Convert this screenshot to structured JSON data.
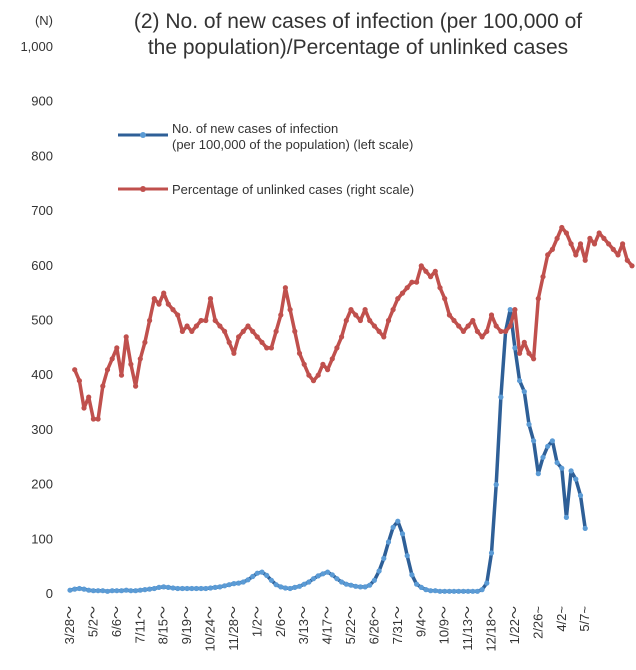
{
  "chart_data": {
    "type": "line",
    "title_lines": [
      "(2) No. of new cases of infection (per 100,000 of",
      "the population)/Percentage of unlinked cases"
    ],
    "y_unit": "(N)",
    "ylim": [
      0,
      1000
    ],
    "y_ticks": [
      "0",
      "100",
      "200",
      "300",
      "400",
      "500",
      "600",
      "700",
      "800",
      "900",
      "1,000"
    ],
    "x_tick_labels": [
      "3/28～",
      "5/2～",
      "6/6～",
      "7/11～",
      "8/15～",
      "9/19～",
      "10/24～",
      "11/28～",
      "1/2～",
      "2/6～",
      "3/13～",
      "4/17～",
      "5/22～",
      "6/26～",
      "7/31～",
      "9/4～",
      "10/9～",
      "11/13～",
      "12/18～",
      "1/22～",
      "2/26~",
      "4/2~",
      "5/7~"
    ],
    "x_tick_positions": [
      0,
      5,
      10,
      15,
      20,
      25,
      30,
      35,
      40,
      45,
      50,
      55,
      60,
      65,
      70,
      75,
      80,
      85,
      90,
      95,
      100,
      105,
      110
    ],
    "grid": false,
    "legend_position": "top-left",
    "series": [
      {
        "name_lines": [
          "No. of new cases of infection",
          "(per 100,000 of the population) (left scale)"
        ],
        "color": "#2e5f97",
        "marker_color": "#5b9bd5",
        "start": 0,
        "values": [
          7,
          9,
          10,
          9,
          7,
          6,
          6,
          6,
          5,
          6,
          6,
          6,
          7,
          6,
          6,
          7,
          8,
          9,
          10,
          12,
          13,
          12,
          11,
          10,
          10,
          10,
          10,
          10,
          10,
          10,
          11,
          12,
          13,
          15,
          17,
          19,
          20,
          22,
          26,
          32,
          38,
          40,
          34,
          25,
          17,
          13,
          11,
          10,
          12,
          14,
          18,
          22,
          28,
          33,
          37,
          40,
          35,
          28,
          22,
          18,
          16,
          14,
          13,
          13,
          16,
          25,
          42,
          65,
          95,
          122,
          133,
          110,
          70,
          35,
          18,
          12,
          8,
          6,
          6,
          5,
          5,
          5,
          5,
          5,
          5,
          5,
          5,
          5,
          8,
          20,
          75,
          200,
          360,
          480,
          520,
          450,
          390,
          370,
          310,
          280,
          220,
          250,
          270,
          280,
          240,
          230,
          140,
          225,
          210,
          180,
          120
        ]
      },
      {
        "name": "Percentage of unlinked cases (right scale)",
        "color": "#c0504d",
        "marker_color": "#c0504d",
        "start": 0,
        "values": [
          null,
          410,
          390,
          340,
          360,
          320,
          320,
          380,
          410,
          430,
          450,
          400,
          470,
          420,
          380,
          430,
          460,
          500,
          540,
          530,
          550,
          530,
          520,
          510,
          480,
          490,
          480,
          490,
          500,
          500,
          540,
          500,
          490,
          480,
          460,
          440,
          470,
          480,
          490,
          480,
          470,
          460,
          450,
          450,
          480,
          510,
          560,
          520,
          480,
          440,
          420,
          400,
          390,
          400,
          420,
          410,
          430,
          450,
          470,
          500,
          520,
          510,
          500,
          520,
          500,
          490,
          480,
          470,
          500,
          520,
          540,
          550,
          560,
          570,
          570,
          600,
          590,
          580,
          590,
          560,
          540,
          510,
          500,
          490,
          480,
          490,
          500,
          480,
          470,
          480,
          510,
          490,
          480,
          480,
          490,
          520,
          440,
          460,
          440,
          430,
          540,
          580,
          620,
          630,
          650,
          670,
          660,
          640,
          620,
          640,
          610,
          650,
          640,
          660,
          650,
          640,
          630,
          620,
          640,
          610,
          600
        ]
      }
    ]
  }
}
